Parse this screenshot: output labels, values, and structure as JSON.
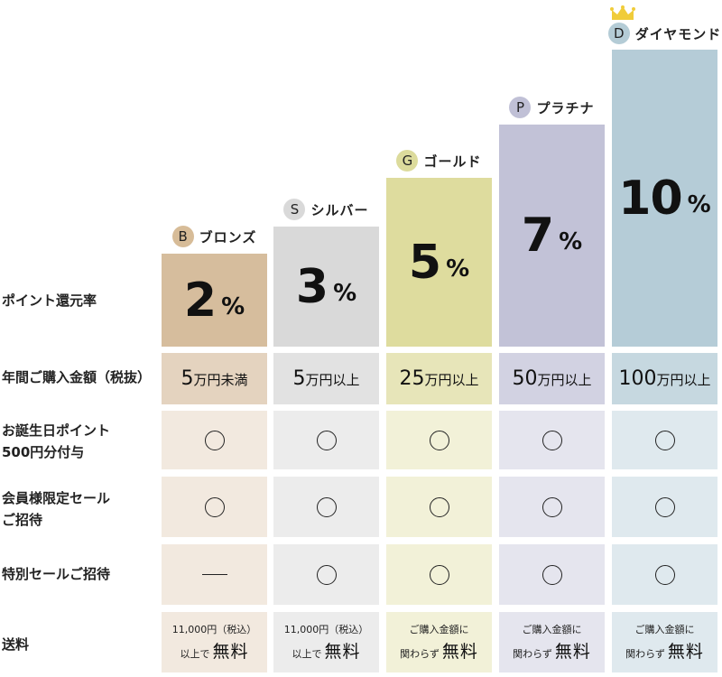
{
  "row_labels": {
    "rate": "ポイント還元率",
    "spend": "年間ご購入金額（税抜）",
    "birthday_line1": "お誕生日ポイント",
    "birthday_line2": "500円分付与",
    "member_sale_line1": "会員様限定セール",
    "member_sale_line2": "ご招待",
    "special_sale": "特別セールご招待",
    "shipping": "送料"
  },
  "tiers": [
    {
      "letter": "B",
      "name": "ブロンズ",
      "rate": "2",
      "rate_unit": "%",
      "spend_num": "5",
      "spend_unit": "万円未満",
      "birthday": "○",
      "member_sale": "○",
      "special_sale": "—",
      "ship_line1": "11,000円（税込）",
      "ship_line2_small": "以上で",
      "ship_line2_big": "無料",
      "colors": {
        "badge": "#d7bc98",
        "bar": "#d6bd9d",
        "light": "#f2e9df",
        "mid": "#e4d3bf"
      }
    },
    {
      "letter": "S",
      "name": "シルバー",
      "rate": "3",
      "rate_unit": "%",
      "spend_num": "5",
      "spend_unit": "万円以上",
      "birthday": "○",
      "member_sale": "○",
      "special_sale": "○",
      "ship_line1": "11,000円（税込）",
      "ship_line2_small": "以上で",
      "ship_line2_big": "無料",
      "colors": {
        "badge": "#d9d9d9",
        "bar": "#d9d9d9",
        "light": "#ececec",
        "mid": "#e2e2e2"
      }
    },
    {
      "letter": "G",
      "name": "ゴールド",
      "rate": "5",
      "rate_unit": "%",
      "spend_num": "25",
      "spend_unit": "万円以上",
      "birthday": "○",
      "member_sale": "○",
      "special_sale": "○",
      "ship_line1": "ご購入金額に",
      "ship_line2_small": "関わらず",
      "ship_line2_big": "無料",
      "colors": {
        "badge": "#dcdb9c",
        "bar": "#dedc9e",
        "light": "#f2f1d8",
        "mid": "#e7e5b9"
      }
    },
    {
      "letter": "P",
      "name": "プラチナ",
      "rate": "7",
      "rate_unit": "%",
      "spend_num": "50",
      "spend_unit": "万円以上",
      "birthday": "○",
      "member_sale": "○",
      "special_sale": "○",
      "ship_line1": "ご購入金額に",
      "ship_line2_small": "関わらず",
      "ship_line2_big": "無料",
      "colors": {
        "badge": "#c0c0d6",
        "bar": "#c2c2d7",
        "light": "#e5e5ee",
        "mid": "#d2d2e2"
      }
    },
    {
      "letter": "D",
      "name": "ダイヤモンド",
      "rate": "10",
      "rate_unit": "%",
      "spend_num": "100",
      "spend_unit": "万円以上",
      "birthday": "○",
      "member_sale": "○",
      "special_sale": "○",
      "ship_line1": "ご購入金額に",
      "ship_line2_small": "関わらず",
      "ship_line2_big": "無料",
      "colors": {
        "badge": "#b4ccd6",
        "bar": "#b5ccd7",
        "light": "#dfe9ee",
        "mid": "#c6d8e0"
      }
    }
  ],
  "crown_color": "#f0cc3a"
}
